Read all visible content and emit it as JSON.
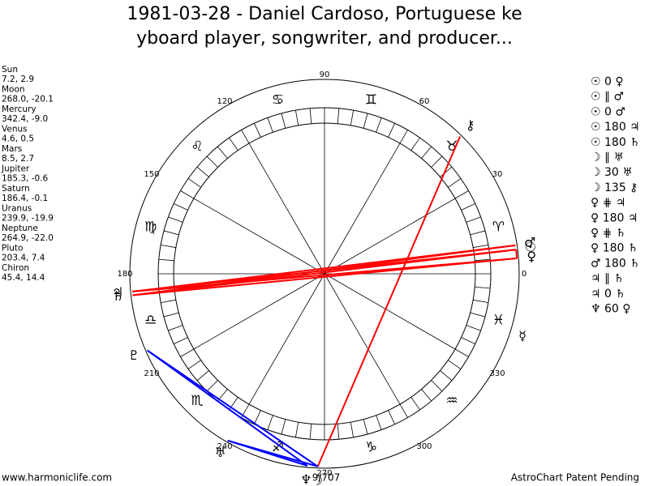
{
  "header": {
    "title_lines": [
      "1981-03-28 - Daniel Cardoso, Portuguese ke",
      "yboard player, songwriter, and producer..."
    ]
  },
  "planets": [
    {
      "name": "Sun",
      "coords": "7.2, 2.9",
      "glyph": "☉"
    },
    {
      "name": "Moon",
      "coords": "268.0, -20.1",
      "glyph": "☽"
    },
    {
      "name": "Mercury",
      "coords": "342.4, -9.0",
      "glyph": "☿"
    },
    {
      "name": "Venus",
      "coords": "4.6, 0.5",
      "glyph": "♀"
    },
    {
      "name": "Mars",
      "coords": "8.5, 2.7",
      "glyph": "♂"
    },
    {
      "name": "Jupiter",
      "coords": "185.3, -0.6",
      "glyph": "♃"
    },
    {
      "name": "Saturn",
      "coords": "186.4, -0.1",
      "glyph": "♄"
    },
    {
      "name": "Uranus",
      "coords": "239.9, -19.9",
      "glyph": "♅"
    },
    {
      "name": "Neptune",
      "coords": "264.9, -22.0",
      "glyph": "♆"
    },
    {
      "name": "Pluto",
      "coords": "203.4, 7.4",
      "glyph": "♇"
    },
    {
      "name": "Chiron",
      "coords": "45.4, 14.4",
      "glyph": "⚷"
    }
  ],
  "aspects": [
    "☉ 0 ♀",
    "☉ ∥ ♂",
    "☉ 0 ♂",
    "☉ 180 ♃",
    "☉ 180 ♄",
    "☽ ∥ ♅",
    "☽ 30 ♅",
    "☽ 135 ⚷",
    "♀ ⋕ ♃",
    "♀ 180 ♃",
    "♀ ⋕ ♄",
    "♀ 180 ♄",
    "♂ 180 ♄",
    "♃ ∥ ♄",
    "♃ 0 ♄",
    "♆ 60 ♀"
  ],
  "wheel": {
    "degree_labels": [
      "0",
      "30",
      "60",
      "90",
      "120",
      "150",
      "180",
      "210",
      "240",
      "270",
      "300",
      "330"
    ],
    "signs": [
      "♈",
      "♉",
      "♊",
      "♋",
      "♌",
      "♍",
      "♎",
      "♏",
      "♐",
      "♑",
      "♒",
      "♓"
    ],
    "bottom_label": "9/707"
  },
  "footer": {
    "left": "www.harmoniclife.com",
    "right": "AstroChart Patent Pending"
  }
}
